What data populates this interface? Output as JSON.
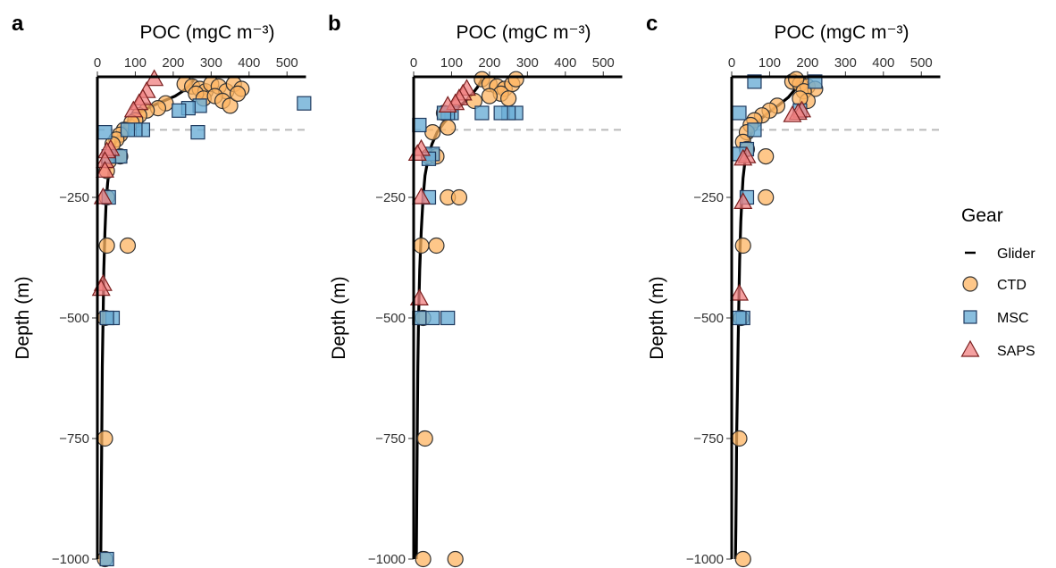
{
  "chart_data": {
    "type": "scatter",
    "x_label": "POC (mgC m⁻³)",
    "y_label": "Depth (m)",
    "xlim": [
      0,
      550
    ],
    "ylim": [
      -1000,
      0
    ],
    "x_ticks": [
      0,
      100,
      200,
      300,
      400,
      500
    ],
    "y_ticks": [
      -250,
      -500,
      -750,
      -1000
    ],
    "reference_depth": -110,
    "legend": {
      "title": "Gear",
      "placement": "right",
      "items": [
        {
          "label": "Glider",
          "marker": "line"
        },
        {
          "label": "CTD",
          "marker": "circle",
          "color": "#FDB462"
        },
        {
          "label": "MSC",
          "marker": "square",
          "color": "#6BAED6"
        },
        {
          "label": "SAPS",
          "marker": "triangle",
          "color": "#F08080"
        }
      ]
    },
    "panels": [
      {
        "letter": "a",
        "glider": [
          [
            255,
            -5
          ],
          [
            248,
            -12
          ],
          [
            240,
            -20
          ],
          [
            225,
            -30
          ],
          [
            205,
            -40
          ],
          [
            175,
            -50
          ],
          [
            140,
            -62
          ],
          [
            110,
            -75
          ],
          [
            85,
            -90
          ],
          [
            65,
            -108
          ],
          [
            50,
            -130
          ],
          [
            40,
            -155
          ],
          [
            32,
            -185
          ],
          [
            27,
            -220
          ],
          [
            23,
            -260
          ],
          [
            20,
            -320
          ],
          [
            17,
            -400
          ],
          [
            15,
            -500
          ],
          [
            13,
            -600
          ],
          [
            12,
            -700
          ],
          [
            11,
            -800
          ],
          [
            10,
            -900
          ],
          [
            9,
            -1000
          ]
        ],
        "ctd": [
          [
            230,
            -15
          ],
          [
            250,
            -20
          ],
          [
            270,
            -25
          ],
          [
            285,
            -30
          ],
          [
            300,
            -15
          ],
          [
            320,
            -20
          ],
          [
            340,
            -30
          ],
          [
            360,
            -15
          ],
          [
            380,
            -25
          ],
          [
            260,
            -35
          ],
          [
            280,
            -45
          ],
          [
            310,
            -40
          ],
          [
            330,
            -50
          ],
          [
            350,
            -60
          ],
          [
            370,
            -35
          ],
          [
            180,
            -55
          ],
          [
            160,
            -65
          ],
          [
            130,
            -70
          ],
          [
            110,
            -80
          ],
          [
            100,
            -90
          ],
          [
            90,
            -95
          ],
          [
            70,
            -110
          ],
          [
            60,
            -120
          ],
          [
            50,
            -130
          ],
          [
            40,
            -140
          ],
          [
            60,
            -165
          ],
          [
            30,
            -175
          ],
          [
            25,
            -195
          ],
          [
            25,
            -250
          ],
          [
            80,
            -350
          ],
          [
            25,
            -350
          ],
          [
            20,
            -500
          ],
          [
            20,
            -750
          ],
          [
            20,
            -1000
          ]
        ],
        "msc": [
          [
            545,
            -55
          ],
          [
            270,
            -60
          ],
          [
            240,
            -65
          ],
          [
            215,
            -70
          ],
          [
            265,
            -115
          ],
          [
            120,
            -110
          ],
          [
            100,
            -110
          ],
          [
            80,
            -110
          ],
          [
            20,
            -115
          ],
          [
            60,
            -165
          ],
          [
            30,
            -165
          ],
          [
            30,
            -250
          ],
          [
            40,
            -500
          ],
          [
            25,
            -500
          ],
          [
            25,
            -1000
          ]
        ],
        "saps": [
          [
            150,
            -5
          ],
          [
            130,
            -30
          ],
          [
            120,
            -45
          ],
          [
            110,
            -55
          ],
          [
            95,
            -70
          ],
          [
            35,
            -150
          ],
          [
            25,
            -155
          ],
          [
            20,
            -175
          ],
          [
            20,
            -195
          ],
          [
            15,
            -250
          ],
          [
            15,
            -430
          ],
          [
            10,
            -440
          ]
        ]
      },
      {
        "letter": "b",
        "glider": [
          [
            180,
            -5
          ],
          [
            175,
            -12
          ],
          [
            168,
            -22
          ],
          [
            155,
            -35
          ],
          [
            140,
            -48
          ],
          [
            120,
            -62
          ],
          [
            100,
            -78
          ],
          [
            80,
            -95
          ],
          [
            62,
            -115
          ],
          [
            48,
            -140
          ],
          [
            38,
            -170
          ],
          [
            30,
            -205
          ],
          [
            25,
            -250
          ],
          [
            20,
            -320
          ],
          [
            16,
            -400
          ],
          [
            13,
            -500
          ],
          [
            11,
            -600
          ],
          [
            10,
            -700
          ],
          [
            9,
            -800
          ],
          [
            8,
            -900
          ],
          [
            7,
            -1000
          ]
        ],
        "ctd": [
          [
            180,
            -5
          ],
          [
            200,
            -15
          ],
          [
            220,
            -20
          ],
          [
            240,
            -25
          ],
          [
            260,
            -15
          ],
          [
            270,
            -5
          ],
          [
            230,
            -35
          ],
          [
            250,
            -45
          ],
          [
            200,
            -40
          ],
          [
            160,
            -50
          ],
          [
            80,
            -75
          ],
          [
            90,
            -105
          ],
          [
            50,
            -115
          ],
          [
            40,
            -165
          ],
          [
            60,
            -165
          ],
          [
            90,
            -250
          ],
          [
            120,
            -250
          ],
          [
            60,
            -350
          ],
          [
            20,
            -350
          ],
          [
            25,
            -500
          ],
          [
            30,
            -750
          ],
          [
            25,
            -1000
          ],
          [
            110,
            -1000
          ]
        ],
        "msc": [
          [
            270,
            -75
          ],
          [
            250,
            -75
          ],
          [
            230,
            -75
          ],
          [
            180,
            -75
          ],
          [
            100,
            -75
          ],
          [
            90,
            -75
          ],
          [
            80,
            -75
          ],
          [
            15,
            -100
          ],
          [
            50,
            -160
          ],
          [
            40,
            -170
          ],
          [
            40,
            -250
          ],
          [
            90,
            -500
          ],
          [
            50,
            -500
          ],
          [
            15,
            -500
          ]
        ],
        "saps": [
          [
            140,
            -25
          ],
          [
            130,
            -35
          ],
          [
            120,
            -45
          ],
          [
            110,
            -55
          ],
          [
            90,
            -60
          ],
          [
            20,
            -150
          ],
          [
            10,
            -160
          ],
          [
            20,
            -250
          ],
          [
            15,
            -460
          ]
        ]
      },
      {
        "letter": "c",
        "glider": [
          [
            175,
            -5
          ],
          [
            172,
            -15
          ],
          [
            165,
            -28
          ],
          [
            150,
            -42
          ],
          [
            125,
            -58
          ],
          [
            100,
            -72
          ],
          [
            80,
            -85
          ],
          [
            62,
            -100
          ],
          [
            50,
            -120
          ],
          [
            42,
            -145
          ],
          [
            35,
            -175
          ],
          [
            30,
            -210
          ],
          [
            27,
            -250
          ],
          [
            24,
            -300
          ],
          [
            21,
            -380
          ],
          [
            19,
            -460
          ],
          [
            17,
            -550
          ],
          [
            15,
            -650
          ],
          [
            13,
            -750
          ],
          [
            12,
            -850
          ],
          [
            11,
            -930
          ],
          [
            10,
            -1000
          ]
        ],
        "ctd": [
          [
            160,
            -10
          ],
          [
            180,
            -15
          ],
          [
            200,
            -20
          ],
          [
            220,
            -25
          ],
          [
            170,
            -5
          ],
          [
            190,
            -30
          ],
          [
            200,
            -50
          ],
          [
            180,
            -45
          ],
          [
            120,
            -60
          ],
          [
            100,
            -70
          ],
          [
            80,
            -80
          ],
          [
            60,
            -90
          ],
          [
            50,
            -100
          ],
          [
            40,
            -115
          ],
          [
            30,
            -135
          ],
          [
            40,
            -150
          ],
          [
            90,
            -165
          ],
          [
            90,
            -250
          ],
          [
            30,
            -350
          ],
          [
            25,
            -500
          ],
          [
            20,
            -750
          ],
          [
            30,
            -1000
          ]
        ],
        "msc": [
          [
            220,
            -10
          ],
          [
            60,
            -10
          ],
          [
            180,
            -70
          ],
          [
            20,
            -75
          ],
          [
            60,
            -110
          ],
          [
            40,
            -150
          ],
          [
            20,
            -160
          ],
          [
            40,
            -250
          ],
          [
            30,
            -500
          ],
          [
            20,
            -500
          ]
        ],
        "saps": [
          [
            185,
            -70
          ],
          [
            175,
            -75
          ],
          [
            160,
            -80
          ],
          [
            40,
            -165
          ],
          [
            30,
            -170
          ],
          [
            30,
            -260
          ],
          [
            20,
            -450
          ]
        ]
      }
    ]
  }
}
